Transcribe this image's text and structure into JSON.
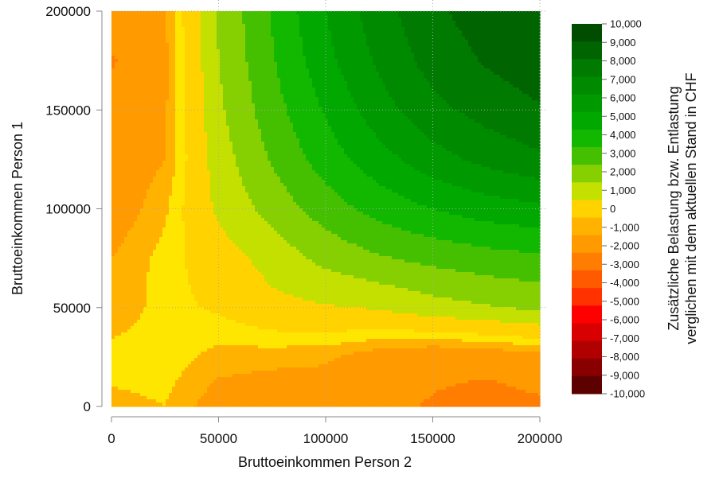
{
  "chart_data": {
    "type": "heatmap",
    "subtype": "filled-contour",
    "xlabel": "Bruttoeinkommen Person 2",
    "ylabel": "Bruttoeinkommen Person 1",
    "colorbar_title_line1": "Zusätzliche Belastung bzw. Entlastung",
    "colorbar_title_line2": "verglichen mit dem aktuellen Stand in CHF",
    "xlim": [
      0,
      200000
    ],
    "ylim": [
      0,
      200000
    ],
    "x_ticks": [
      0,
      50000,
      100000,
      150000,
      200000
    ],
    "x_tick_labels": [
      "0",
      "50000",
      "100000",
      "150000",
      "200000"
    ],
    "y_ticks": [
      0,
      50000,
      100000,
      150000,
      200000
    ],
    "y_tick_labels": [
      "0",
      "50000",
      "100000",
      "150000",
      "200000"
    ],
    "grid": "dotted, at major ticks",
    "colorbar": {
      "range": [
        -10000,
        10000
      ],
      "tick_labels": [
        "10,000",
        "9,000",
        "8,000",
        "7,000",
        "6,000",
        "5,000",
        "4,000",
        "3,000",
        "2,000",
        "1,000",
        "0",
        "-1,000",
        "-2,000",
        "-3,000",
        "-4,000",
        "-5,000",
        "-6,000",
        "-7,000",
        "-8,000",
        "-9,000",
        "-10,000"
      ],
      "colors_top_to_bottom": [
        "#004d00",
        "#006400",
        "#007a00",
        "#008a00",
        "#009900",
        "#00a800",
        "#12b800",
        "#44c000",
        "#86cf00",
        "#c4e000",
        "#ffd200",
        "#ffb300",
        "#ff9a00",
        "#ff7d00",
        "#ff5a00",
        "#ff3200",
        "#ff0000",
        "#d80000",
        "#b00000",
        "#880000",
        "#5c0000"
      ]
    },
    "grid_x": [
      0,
      25000,
      50000,
      75000,
      100000,
      125000,
      150000,
      175000,
      200000
    ],
    "grid_y": [
      0,
      25000,
      50000,
      75000,
      100000,
      125000,
      150000,
      175000,
      200000
    ],
    "z_rows_from_y0": [
      [
        -700,
        -500,
        -1400,
        -1600,
        -1500,
        -1700,
        -2100,
        -2500,
        -2200
      ],
      [
        -200,
        -200,
        -700,
        -800,
        -900,
        -1400,
        -1700,
        -1600,
        -1300
      ],
      [
        -1000,
        -200,
        100,
        700,
        900,
        1100,
        1600,
        1900,
        2200
      ],
      [
        -1000,
        -300,
        500,
        1400,
        2300,
        2900,
        3300,
        3600,
        3800
      ],
      [
        -1500,
        -600,
        1200,
        2400,
        3500,
        4400,
        5000,
        5500,
        5800
      ],
      [
        -1600,
        -1000,
        1500,
        3100,
        4500,
        5600,
        6600,
        7300,
        7800
      ],
      [
        -1700,
        -1100,
        1800,
        3600,
        5100,
        6600,
        7700,
        8400,
        8900
      ],
      [
        -2100,
        -1200,
        2000,
        3900,
        5700,
        7200,
        8400,
        9100,
        9600
      ],
      [
        -1500,
        -1000,
        2100,
        4100,
        6000,
        7600,
        8800,
        9500,
        10000
      ]
    ]
  }
}
